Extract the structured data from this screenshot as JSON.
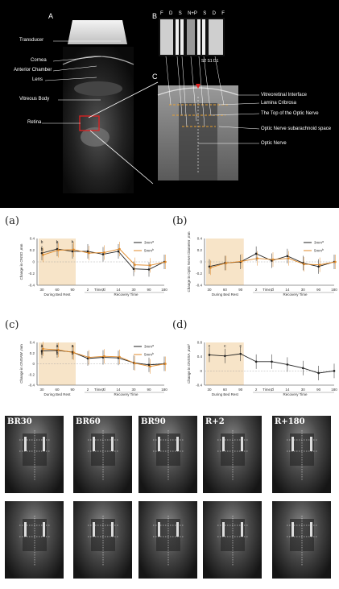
{
  "figure_top": {
    "panel_a": "A",
    "panel_b": "B",
    "panel_c": "C",
    "labels_left": [
      "Transducer",
      "Cornea",
      "Anterior Chamber",
      "Lens",
      "Vitreous Body",
      "Retina"
    ],
    "labels_right": [
      "Vitreoretinal Interface",
      "Lamina Cribrosa",
      "The Top of the Optic Nerve",
      "Optic Nerve subarachnoid space",
      "Optic Nerve"
    ],
    "scan_letters": [
      "F",
      "D",
      "S",
      "N+P",
      "S",
      "D",
      "F"
    ],
    "scan_sublabel": "S2 S1 D1"
  },
  "chart_data": [
    {
      "panel": "(a)",
      "type": "line",
      "ylabel": "Change in ONSD ,mm",
      "xlabel": "Time,d",
      "x_ticks": [
        "30",
        "60",
        "90",
        "2",
        "7",
        "14",
        "30",
        "90",
        "180"
      ],
      "phase_labels": [
        "During Bed Rest",
        "Recovery Time"
      ],
      "ylim": [
        -0.4,
        0.4
      ],
      "y_ticks": [
        "-0.4",
        "-0.2",
        "0",
        "0.2",
        "0.4"
      ],
      "significance": [
        "b",
        "b",
        "b",
        "b"
      ],
      "series": [
        {
          "name": "3mm",
          "sup": "a",
          "color": "#222222",
          "values": [
            0.15,
            0.22,
            0.18,
            0.18,
            0.13,
            0.18,
            -0.12,
            -0.13,
            0.0
          ]
        },
        {
          "name": "5mm",
          "sup": "b",
          "color": "#e08a2a",
          "values": [
            0.12,
            0.2,
            0.21,
            0.15,
            0.16,
            0.22,
            -0.05,
            -0.06,
            0.0
          ]
        }
      ]
    },
    {
      "panel": "(b)",
      "type": "line",
      "ylabel": "Change in Optic Nerve Diameter ,mm",
      "xlabel": "Time,d",
      "x_ticks": [
        "30",
        "60",
        "90",
        "2",
        "7",
        "14",
        "30",
        "90",
        "180"
      ],
      "phase_labels": [
        "During Bed Rest",
        "Recovery Time"
      ],
      "ylim": [
        -0.4,
        0.4
      ],
      "y_ticks": [
        "-0.4",
        "-0.2",
        "0",
        "0.2",
        "0.4"
      ],
      "significance": [],
      "series": [
        {
          "name": "3mm",
          "sup": "a",
          "color": "#222222",
          "values": [
            -0.08,
            -0.02,
            0.0,
            0.14,
            0.02,
            0.1,
            -0.02,
            -0.08,
            0.0
          ]
        },
        {
          "name": "5mm",
          "sup": "b",
          "color": "#e08a2a",
          "values": [
            -0.1,
            -0.02,
            0.01,
            0.06,
            0.04,
            0.06,
            -0.04,
            -0.05,
            0.0
          ]
        }
      ]
    },
    {
      "panel": "(c)",
      "type": "line",
      "ylabel": "Change in ONSAW ,mm",
      "xlabel": "Time,d",
      "x_ticks": [
        "30",
        "60",
        "90",
        "2",
        "7",
        "14",
        "30",
        "90",
        "180"
      ],
      "phase_labels": [
        "During Bed Rest",
        "Recovery Time"
      ],
      "ylim": [
        -0.4,
        0.4
      ],
      "y_ticks": [
        "-0.4",
        "-0.2",
        "0",
        "0.2",
        "0.4"
      ],
      "significance": [
        "a",
        "a",
        "a",
        "b",
        "b",
        "b"
      ],
      "series": [
        {
          "name": "3mm",
          "sup": "a",
          "color": "#222222",
          "values": [
            0.24,
            0.25,
            0.22,
            0.1,
            0.12,
            0.11,
            0.02,
            -0.02,
            0.0
          ]
        },
        {
          "name": "5mm",
          "sup": "b",
          "color": "#e08a2a",
          "values": [
            0.28,
            0.26,
            0.21,
            0.12,
            0.14,
            0.13,
            0.01,
            -0.05,
            0.0
          ]
        }
      ]
    },
    {
      "panel": "(d)",
      "type": "line",
      "ylabel": "Change in ONSSA ,mm²",
      "xlabel": "Time,d",
      "x_ticks": [
        "30",
        "60",
        "90",
        "2",
        "7",
        "14",
        "30",
        "90",
        "180"
      ],
      "phase_labels": [
        "During Bed Rest",
        "Recovery Time"
      ],
      "ylim": [
        -0.4,
        0.8
      ],
      "y_ticks": [
        "-0.4",
        "0",
        "0.4",
        "0.8"
      ],
      "significance": [
        "c",
        "c",
        "c"
      ],
      "series": [
        {
          "name": "",
          "sup": "",
          "color": "#222222",
          "values": [
            0.45,
            0.42,
            0.48,
            0.26,
            0.26,
            0.18,
            0.08,
            -0.06,
            0.0
          ]
        }
      ]
    }
  ],
  "ultrasound_row": {
    "labels": [
      "BR30",
      "BR60",
      "BR90",
      "R+2",
      "R+180"
    ],
    "marker_text": [
      "3mm",
      "5mm"
    ]
  }
}
